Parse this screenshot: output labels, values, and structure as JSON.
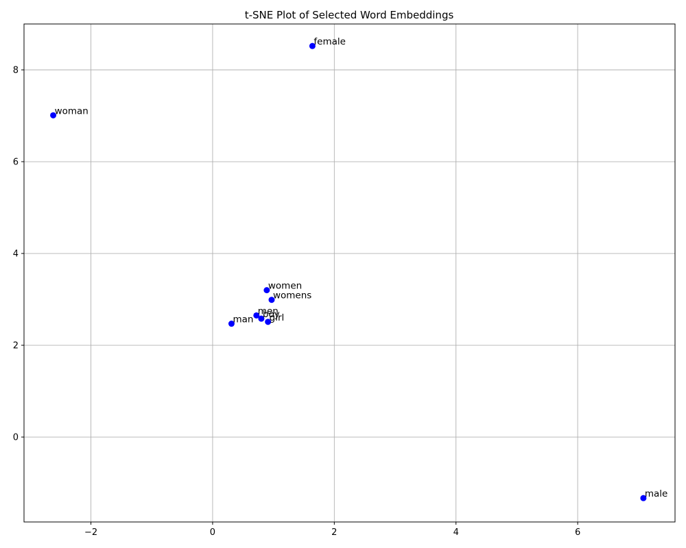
{
  "chart_data": {
    "type": "scatter",
    "title": "t-SNE Plot of Selected Word Embeddings",
    "xlabel": "",
    "ylabel": "",
    "xlim": [
      -3.1,
      7.6
    ],
    "ylim": [
      -1.85,
      9.0
    ],
    "xticks": [
      -2,
      0,
      2,
      4,
      6
    ],
    "yticks": [
      0,
      2,
      4,
      6,
      8
    ],
    "grid": true,
    "marker_color": "#0000ff",
    "points": [
      {
        "label": "female",
        "x": 1.64,
        "y": 8.52
      },
      {
        "label": "woman",
        "x": -2.62,
        "y": 7.01
      },
      {
        "label": "women",
        "x": 0.89,
        "y": 3.2
      },
      {
        "label": "womens",
        "x": 0.97,
        "y": 2.99
      },
      {
        "label": "men",
        "x": 0.72,
        "y": 2.65
      },
      {
        "label": "boy",
        "x": 0.8,
        "y": 2.58
      },
      {
        "label": "girl",
        "x": 0.91,
        "y": 2.51
      },
      {
        "label": "man",
        "x": 0.31,
        "y": 2.47
      },
      {
        "label": "male",
        "x": 7.08,
        "y": -1.33
      }
    ]
  }
}
